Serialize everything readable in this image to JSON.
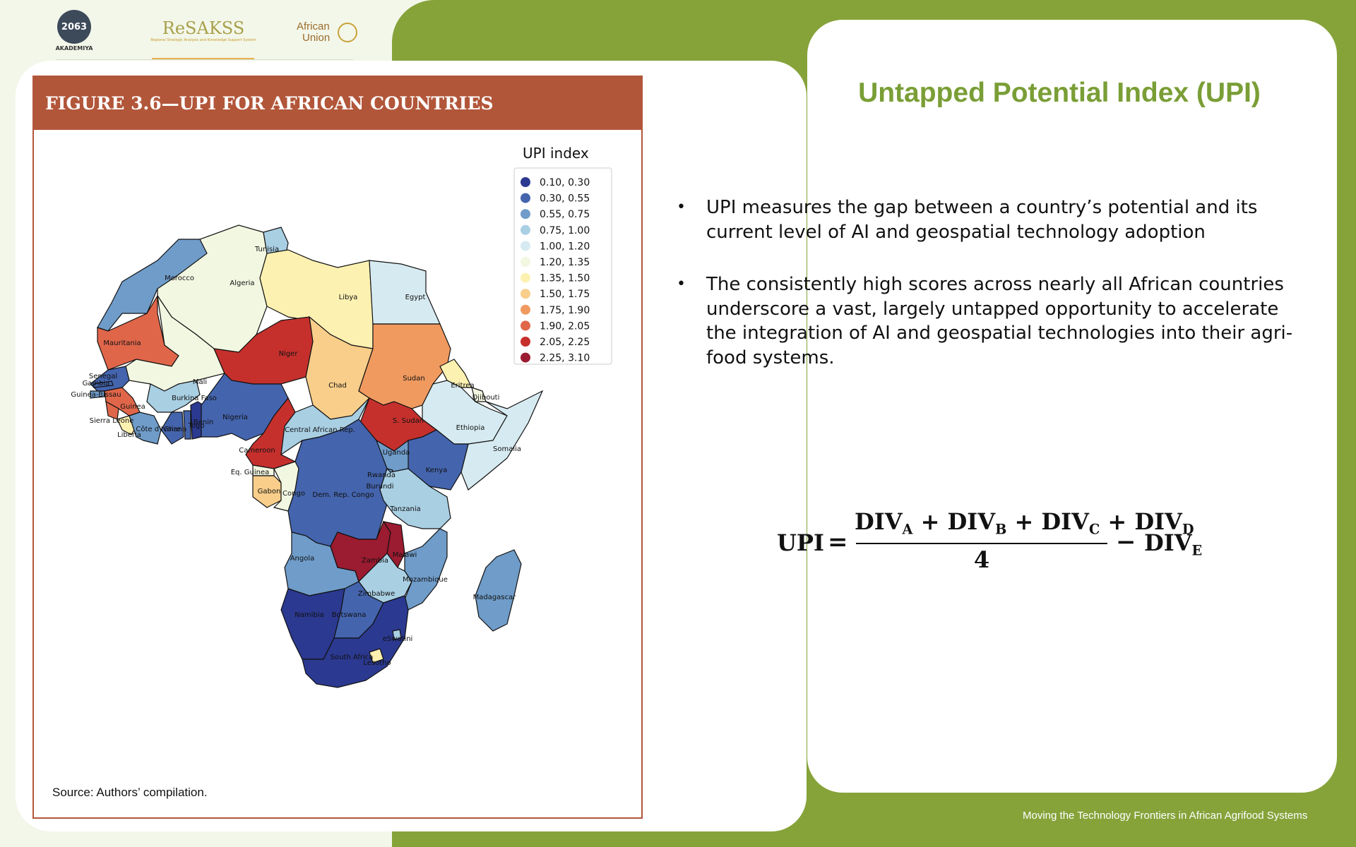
{
  "logos": {
    "akademiya_numbers": "2063",
    "akademiya_caption": "AKADEMIYA",
    "resakss_name": "ReSAKSS",
    "resakss_sub": "Regional Strategic Analysis and Knowledge Support System",
    "au_line1": "African",
    "au_line2": "Union"
  },
  "figure": {
    "title": "FIGURE 3.6—UPI FOR AFRICAN COUNTRIES",
    "source": "Source: Authors’ compilation."
  },
  "chart_data": {
    "type": "choropleth",
    "legend_title": "UPI index",
    "legend_placement": "top-right",
    "classes": [
      {
        "label": "0.10, 0.30",
        "color": "#2b3990"
      },
      {
        "label": "0.30, 0.55",
        "color": "#4464ad"
      },
      {
        "label": "0.55, 0.75",
        "color": "#6f9cc9"
      },
      {
        "label": "0.75, 1.00",
        "color": "#a9cfe3"
      },
      {
        "label": "1.00, 1.20",
        "color": "#d6ebf1"
      },
      {
        "label": "1.20, 1.35",
        "color": "#f2f7e1"
      },
      {
        "label": "1.35, 1.50",
        "color": "#fdf1b2"
      },
      {
        "label": "1.50, 1.75",
        "color": "#f8ce8a"
      },
      {
        "label": "1.75, 1.90",
        "color": "#f09a60"
      },
      {
        "label": "1.90, 2.05",
        "color": "#e0664a"
      },
      {
        "label": "2.05, 2.25",
        "color": "#c5302d"
      },
      {
        "label": "2.25, 3.10",
        "color": "#9b1b30"
      }
    ],
    "countries": [
      {
        "name": "Tunisia",
        "class": 3
      },
      {
        "name": "Morocco",
        "class": 2
      },
      {
        "name": "Algeria",
        "class": 5
      },
      {
        "name": "Libya",
        "class": 6
      },
      {
        "name": "Egypt",
        "class": 4
      },
      {
        "name": "Mauritania",
        "class": 9
      },
      {
        "name": "Mali",
        "class": 5
      },
      {
        "name": "Niger",
        "class": 10
      },
      {
        "name": "Chad",
        "class": 7
      },
      {
        "name": "Sudan",
        "class": 8
      },
      {
        "name": "Eritrea",
        "class": 6
      },
      {
        "name": "Djibouti",
        "class": 5
      },
      {
        "name": "Ethiopia",
        "class": 4
      },
      {
        "name": "Somalia",
        "class": 4
      },
      {
        "name": "Senegal",
        "class": 1
      },
      {
        "name": "Gambia",
        "class": 1
      },
      {
        "name": "Guinea-Bissau",
        "class": 2
      },
      {
        "name": "Guinea",
        "class": 9
      },
      {
        "name": "Sierra Leone",
        "class": 9
      },
      {
        "name": "Liberia",
        "class": 6
      },
      {
        "name": "Côte d'Ivoire",
        "class": 2
      },
      {
        "name": "Burkina Faso",
        "class": 3
      },
      {
        "name": "Ghana",
        "class": 1
      },
      {
        "name": "Togo",
        "class": 1
      },
      {
        "name": "Benin",
        "class": 0
      },
      {
        "name": "Nigeria",
        "class": 1
      },
      {
        "name": "Cameroon",
        "class": 10
      },
      {
        "name": "Central African Rep.",
        "class": 3
      },
      {
        "name": "S. Sudan",
        "class": 10
      },
      {
        "name": "Eq. Guinea",
        "class": 5
      },
      {
        "name": "Gabon",
        "class": 7
      },
      {
        "name": "Congo",
        "class": 5
      },
      {
        "name": "Dem. Rep. Congo",
        "class": 1
      },
      {
        "name": "Uganda",
        "class": 2
      },
      {
        "name": "Kenya",
        "class": 1
      },
      {
        "name": "Rwanda",
        "class": 2
      },
      {
        "name": "Burundi",
        "class": 1
      },
      {
        "name": "Tanzania",
        "class": 3
      },
      {
        "name": "Angola",
        "class": 2
      },
      {
        "name": "Zambia",
        "class": 11
      },
      {
        "name": "Malawi",
        "class": 11
      },
      {
        "name": "Mozambique",
        "class": 2
      },
      {
        "name": "Zimbabwe",
        "class": 3
      },
      {
        "name": "Madagascar",
        "class": 2
      },
      {
        "name": "Namibia",
        "class": 0
      },
      {
        "name": "Botswana",
        "class": 1
      },
      {
        "name": "South Africa",
        "class": 0
      },
      {
        "name": "eSwatini",
        "class": 3
      },
      {
        "name": "Lesotho",
        "class": 6
      }
    ]
  },
  "slide": {
    "title": "Untapped Potential Index (UPI)",
    "bullets": [
      "UPI measures the gap between a country’s potential and its current level of AI and geospatial technology adoption",
      "The consistently high scores across nearly all African countries underscore a vast, largely untapped opportunity to accelerate the integration of AI and geospatial technologies into their agri-food systems."
    ],
    "bullet_symbol": "•",
    "formula": {
      "lhs": "UPI",
      "equals": "=",
      "numerator_terms": [
        {
          "base": "DIV",
          "sub": "A"
        },
        {
          "base": "DIV",
          "sub": "B"
        },
        {
          "base": "DIV",
          "sub": "C"
        },
        {
          "base": "DIV",
          "sub": "D"
        }
      ],
      "plus": "+",
      "denominator": "4",
      "minus": "−",
      "subtract_term": {
        "base": "DIV",
        "sub": "E"
      }
    },
    "footer": "Moving the Technology Frontiers in African Agrifood Systems"
  }
}
